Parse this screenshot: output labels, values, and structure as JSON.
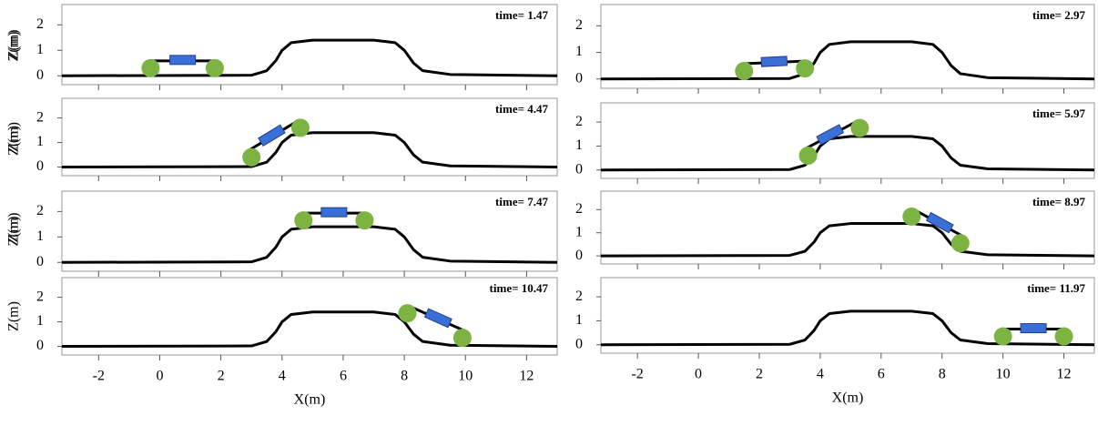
{
  "chart_data": [
    {
      "type": "line",
      "annotation": "time= 1.47",
      "ylabel": "Z(m)",
      "xlim": [
        -3.2,
        13
      ],
      "ylim": [
        -0.35,
        2.8
      ],
      "xticks": [
        -2,
        0,
        2,
        4,
        6,
        8,
        10,
        12
      ],
      "yticks": [
        0,
        1,
        2
      ],
      "color": "#000000",
      "x": [
        -3.2,
        3,
        3.5,
        3.8,
        4,
        4.3,
        5,
        7,
        7.7,
        8,
        8.3,
        8.6,
        9.5,
        13
      ],
      "values": [
        0,
        0.02,
        0.2,
        0.6,
        1.0,
        1.3,
        1.4,
        1.4,
        1.3,
        1.0,
        0.5,
        0.2,
        0.05,
        0
      ],
      "wheels": {
        "x": [
          -0.3,
          1.8
        ],
        "z": [
          0.3,
          0.3
        ]
      }
    },
    {
      "type": "line",
      "annotation": "time= 2.97",
      "ylabel": "Z(m)",
      "xlim": [
        -3.2,
        13
      ],
      "ylim": [
        -0.35,
        2.8
      ],
      "xticks": [
        -2,
        0,
        2,
        4,
        6,
        8,
        10,
        12
      ],
      "yticks": [
        0,
        1,
        2
      ],
      "color": "#000000",
      "x": [
        -3.2,
        3,
        3.5,
        3.8,
        4,
        4.3,
        5,
        7,
        7.7,
        8,
        8.3,
        8.6,
        9.5,
        13
      ],
      "values": [
        0,
        0.02,
        0.2,
        0.6,
        1.0,
        1.3,
        1.4,
        1.4,
        1.3,
        1.0,
        0.5,
        0.2,
        0.05,
        0
      ],
      "wheels": {
        "x": [
          1.5,
          3.5
        ],
        "z": [
          0.3,
          0.4
        ]
      }
    },
    {
      "type": "line",
      "annotation": "time= 4.47",
      "ylabel": "Z(m)",
      "xlim": [
        -3.2,
        13
      ],
      "ylim": [
        -0.35,
        2.8
      ],
      "xticks": [
        -2,
        0,
        2,
        4,
        6,
        8,
        10,
        12
      ],
      "yticks": [
        0,
        1,
        2
      ],
      "color": "#000000",
      "x": [
        -3.2,
        3,
        3.5,
        3.8,
        4,
        4.3,
        5,
        7,
        7.7,
        8,
        8.3,
        8.6,
        9.5,
        13
      ],
      "values": [
        0,
        0.02,
        0.2,
        0.6,
        1.0,
        1.3,
        1.4,
        1.4,
        1.3,
        1.0,
        0.5,
        0.2,
        0.05,
        0
      ],
      "wheels": {
        "x": [
          3.0,
          4.6
        ],
        "z": [
          0.4,
          1.6
        ]
      }
    },
    {
      "type": "line",
      "annotation": "time= 5.97",
      "ylabel": "Z(m)",
      "xlim": [
        -3.2,
        13
      ],
      "ylim": [
        -0.35,
        2.8
      ],
      "xticks": [
        -2,
        0,
        2,
        4,
        6,
        8,
        10,
        12
      ],
      "yticks": [
        0,
        1,
        2
      ],
      "color": "#000000",
      "x": [
        -3.2,
        3,
        3.5,
        3.8,
        4,
        4.3,
        5,
        7,
        7.7,
        8,
        8.3,
        8.6,
        9.5,
        13
      ],
      "values": [
        0,
        0.02,
        0.2,
        0.6,
        1.0,
        1.3,
        1.4,
        1.4,
        1.3,
        1.0,
        0.5,
        0.2,
        0.05,
        0
      ],
      "wheels": {
        "x": [
          3.6,
          5.3
        ],
        "z": [
          0.6,
          1.75
        ]
      }
    },
    {
      "type": "line",
      "annotation": "time= 7.47",
      "ylabel": "Z(m)",
      "xlim": [
        -3.2,
        13
      ],
      "ylim": [
        -0.35,
        2.8
      ],
      "xticks": [
        -2,
        0,
        2,
        4,
        6,
        8,
        10,
        12
      ],
      "yticks": [
        0,
        1,
        2
      ],
      "color": "#000000",
      "x": [
        -3.2,
        3,
        3.5,
        3.8,
        4,
        4.3,
        5,
        7,
        7.7,
        8,
        8.3,
        8.6,
        9.5,
        13
      ],
      "values": [
        0,
        0.02,
        0.2,
        0.6,
        1.0,
        1.3,
        1.4,
        1.4,
        1.3,
        1.0,
        0.5,
        0.2,
        0.05,
        0
      ],
      "wheels": {
        "x": [
          4.7,
          6.7
        ],
        "z": [
          1.65,
          1.65
        ]
      }
    },
    {
      "type": "line",
      "annotation": "time= 8.97",
      "ylabel": "Z(m)",
      "xlim": [
        -3.2,
        13
      ],
      "ylim": [
        -0.35,
        2.8
      ],
      "xticks": [
        -2,
        0,
        2,
        4,
        6,
        8,
        10,
        12
      ],
      "yticks": [
        0,
        1,
        2
      ],
      "color": "#000000",
      "x": [
        -3.2,
        3,
        3.5,
        3.8,
        4,
        4.3,
        5,
        7,
        7.7,
        8,
        8.3,
        8.6,
        9.5,
        13
      ],
      "values": [
        0,
        0.02,
        0.2,
        0.6,
        1.0,
        1.3,
        1.4,
        1.4,
        1.3,
        1.0,
        0.5,
        0.2,
        0.05,
        0
      ],
      "wheels": {
        "x": [
          7.0,
          8.6
        ],
        "z": [
          1.7,
          0.55
        ]
      }
    },
    {
      "type": "line",
      "annotation": "time= 10.47",
      "ylabel": "Z(m)",
      "xlabel": "X(m)",
      "xlim": [
        -3.2,
        13
      ],
      "ylim": [
        -0.35,
        2.8
      ],
      "xticks": [
        -2,
        0,
        2,
        4,
        6,
        8,
        10,
        12
      ],
      "yticks": [
        0,
        1,
        2
      ],
      "color": "#000000",
      "x": [
        -3.2,
        3,
        3.5,
        3.8,
        4,
        4.3,
        5,
        7,
        7.7,
        8,
        8.3,
        8.6,
        9.5,
        13
      ],
      "values": [
        0,
        0.02,
        0.2,
        0.6,
        1.0,
        1.3,
        1.4,
        1.4,
        1.3,
        1.0,
        0.5,
        0.2,
        0.05,
        0
      ],
      "wheels": {
        "x": [
          8.1,
          9.9
        ],
        "z": [
          1.35,
          0.35
        ]
      }
    },
    {
      "type": "line",
      "annotation": "time= 11.97",
      "xlabel": "X(m)",
      "xlim": [
        -3.2,
        13
      ],
      "ylim": [
        -0.35,
        2.8
      ],
      "xticks": [
        -2,
        0,
        2,
        4,
        6,
        8,
        10,
        12
      ],
      "yticks": [
        0,
        1,
        2
      ],
      "color": "#000000",
      "x": [
        -3.2,
        3,
        3.5,
        3.8,
        4,
        4.3,
        5,
        7,
        7.7,
        8,
        8.3,
        8.6,
        9.5,
        13
      ],
      "values": [
        0,
        0.02,
        0.2,
        0.6,
        1.0,
        1.3,
        1.4,
        1.4,
        1.3,
        1.0,
        0.5,
        0.2,
        0.05,
        0
      ],
      "wheels": {
        "x": [
          10.0,
          12.0
        ],
        "z": [
          0.35,
          0.35
        ]
      }
    }
  ]
}
